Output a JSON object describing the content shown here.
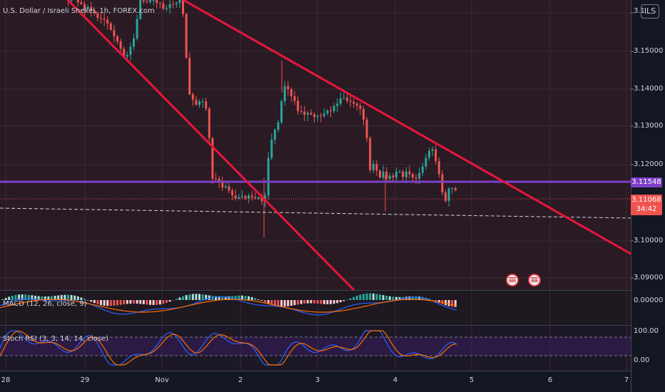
{
  "header": {
    "symbol_title": "U.S. Dollar / Israeli Shekel, 1h, FOREX.com",
    "currency_button": "ILS"
  },
  "y_axis": {
    "ticks": [
      "3.15000",
      "3.14000",
      "3.13000",
      "3.12000",
      "3.10000",
      "3.09000"
    ],
    "top_partial": "3.1"
  },
  "price_tags": {
    "line_price": "3.11548",
    "last_price": "3.11068",
    "countdown": "34:42"
  },
  "macd": {
    "title": "MACD (12, 26, close, 9)",
    "tick": "0.00000"
  },
  "stoch": {
    "title": "Stoch RSI (3, 3, 14, 14, close)",
    "tick_top": "100.00",
    "tick_bottom": "0.00"
  },
  "x_axis": {
    "labels": [
      "28",
      "29",
      "Nov",
      "2",
      "3",
      "4",
      "5",
      "6",
      "7"
    ]
  },
  "colors": {
    "bg": "#131722",
    "chart_bg": "#2a1a24",
    "bull": "#26a69a",
    "bear": "#ef5350",
    "trend": "#e8163c",
    "hline": "#7e3fc7",
    "stoch_band": "#2b1a43"
  },
  "icons": [
    "us-flag-event-icon",
    "us-flag-event-icon"
  ]
}
